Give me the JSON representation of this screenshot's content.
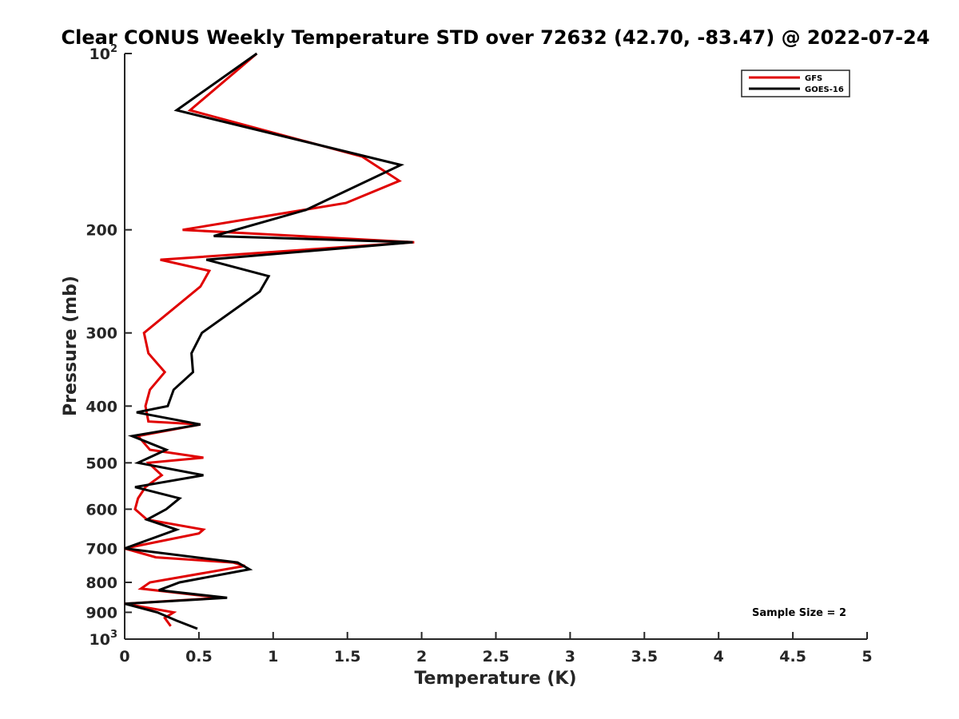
{
  "chart_data": {
    "type": "line",
    "title": "Clear CONUS Weekly Temperature STD over 72632 (42.70, -83.47) @ 2022-07-24",
    "xlabel": "Temperature (K)",
    "ylabel": "Pressure (mb)",
    "xlim": [
      0,
      5
    ],
    "ylim": [
      100,
      1000
    ],
    "y_scale": "log",
    "y_reversed": false,
    "x_ticks": [
      0,
      0.5,
      1,
      1.5,
      2,
      2.5,
      3,
      3.5,
      4,
      4.5,
      5
    ],
    "x_tick_labels": [
      "0",
      "0.5",
      "1",
      "1.5",
      "2",
      "2.5",
      "3",
      "3.5",
      "4",
      "4.5",
      "5"
    ],
    "y_ticks": [
      100,
      200,
      300,
      400,
      500,
      600,
      700,
      800,
      900,
      1000
    ],
    "y_tick_labels": [
      {
        "base": "10",
        "exp": "2"
      },
      {
        "base": "200",
        "exp": ""
      },
      {
        "base": "300",
        "exp": ""
      },
      {
        "base": "400",
        "exp": ""
      },
      {
        "base": "500",
        "exp": ""
      },
      {
        "base": "600",
        "exp": ""
      },
      {
        "base": "700",
        "exp": ""
      },
      {
        "base": "800",
        "exp": ""
      },
      {
        "base": "900",
        "exp": ""
      },
      {
        "base": "10",
        "exp": "3"
      }
    ],
    "legend_position": "top-right",
    "annotation": "Sample Size = 2",
    "series": [
      {
        "name": "GFS",
        "color": "#e00000",
        "points": [
          [
            0.89,
            100
          ],
          [
            0.44,
            125
          ],
          [
            1.6,
            150
          ],
          [
            1.85,
            165
          ],
          [
            1.49,
            180
          ],
          [
            0.39,
            200
          ],
          [
            1.95,
            210
          ],
          [
            0.24,
            225
          ],
          [
            0.57,
            235
          ],
          [
            0.51,
            250
          ],
          [
            0.13,
            300
          ],
          [
            0.16,
            325
          ],
          [
            0.27,
            350
          ],
          [
            0.17,
            375
          ],
          [
            0.14,
            400
          ],
          [
            0.16,
            425
          ],
          [
            0.51,
            430
          ],
          [
            0.09,
            450
          ],
          [
            0.17,
            475
          ],
          [
            0.53,
            490
          ],
          [
            0.16,
            500
          ],
          [
            0.25,
            525
          ],
          [
            0.14,
            550
          ],
          [
            0.09,
            575
          ],
          [
            0.07,
            600
          ],
          [
            0.15,
            625
          ],
          [
            0.53,
            650
          ],
          [
            0.5,
            660
          ],
          [
            0.0,
            700
          ],
          [
            0.21,
            725
          ],
          [
            0.73,
            740
          ],
          [
            0.81,
            750
          ],
          [
            0.17,
            800
          ],
          [
            0.11,
            820
          ],
          [
            0.65,
            850
          ],
          [
            0.0,
            870
          ],
          [
            0.33,
            900
          ],
          [
            0.27,
            920
          ],
          [
            0.31,
            950
          ]
        ]
      },
      {
        "name": "GOES-16",
        "color": "#000000",
        "points": [
          [
            0.89,
            100
          ],
          [
            0.35,
            125
          ],
          [
            1.86,
            155
          ],
          [
            1.22,
            185
          ],
          [
            0.6,
            205
          ],
          [
            1.94,
            210
          ],
          [
            0.55,
            225
          ],
          [
            0.97,
            240
          ],
          [
            0.91,
            255
          ],
          [
            0.52,
            300
          ],
          [
            0.45,
            325
          ],
          [
            0.46,
            350
          ],
          [
            0.33,
            375
          ],
          [
            0.29,
            400
          ],
          [
            0.08,
            410
          ],
          [
            0.51,
            430
          ],
          [
            0.05,
            450
          ],
          [
            0.28,
            475
          ],
          [
            0.09,
            500
          ],
          [
            0.53,
            525
          ],
          [
            0.07,
            550
          ],
          [
            0.37,
            575
          ],
          [
            0.28,
            600
          ],
          [
            0.15,
            625
          ],
          [
            0.35,
            650
          ],
          [
            0.0,
            700
          ],
          [
            0.76,
            740
          ],
          [
            0.84,
            760
          ],
          [
            0.37,
            800
          ],
          [
            0.23,
            825
          ],
          [
            0.69,
            850
          ],
          [
            0.0,
            870
          ],
          [
            0.22,
            900
          ],
          [
            0.35,
            930
          ],
          [
            0.49,
            960
          ]
        ]
      }
    ]
  }
}
